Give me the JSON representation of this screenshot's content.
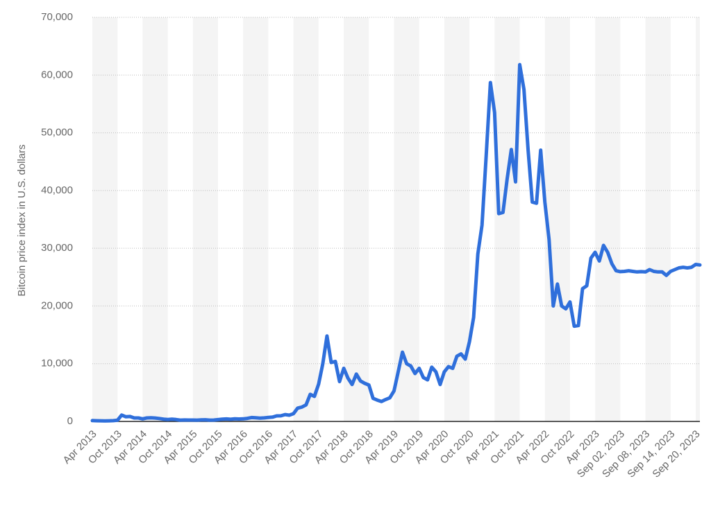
{
  "chart_data": {
    "type": "line",
    "ylabel": "Bitcoin price index in U.S. dollars",
    "color": "#2f6fdb",
    "grid": true,
    "ylim": [
      0,
      70000
    ],
    "yticks": [
      0,
      {
        "value": 10000,
        "label": "10,000"
      },
      {
        "value": 20000,
        "label": "20,000"
      },
      {
        "value": 30000,
        "label": "30,000"
      },
      {
        "value": 40000,
        "label": "40,000"
      },
      {
        "value": 50000,
        "label": "50,000"
      },
      {
        "value": 60000,
        "label": "60,000"
      },
      {
        "value": 70000,
        "label": "70,000"
      }
    ],
    "categories": [
      "Apr 2013",
      null,
      null,
      null,
      null,
      null,
      "Oct 2013",
      null,
      null,
      null,
      null,
      null,
      "Apr 2014",
      null,
      null,
      null,
      null,
      null,
      "Oct 2014",
      null,
      null,
      null,
      null,
      null,
      "Apr 2015",
      null,
      null,
      null,
      null,
      null,
      "Oct 2015",
      null,
      null,
      null,
      null,
      null,
      "Apr 2016",
      null,
      null,
      null,
      null,
      null,
      "Oct 2016",
      null,
      null,
      null,
      null,
      null,
      "Apr 2017",
      null,
      null,
      null,
      null,
      null,
      "Oct 2017",
      null,
      null,
      null,
      null,
      null,
      "Apr 2018",
      null,
      null,
      null,
      null,
      null,
      "Oct 2018",
      null,
      null,
      null,
      null,
      null,
      "Apr 2019",
      null,
      null,
      null,
      null,
      null,
      "Oct 2019",
      null,
      null,
      null,
      null,
      null,
      "Apr 2020",
      null,
      null,
      null,
      null,
      null,
      "Oct 2020",
      null,
      null,
      null,
      null,
      null,
      "Apr 2021",
      null,
      null,
      null,
      null,
      null,
      "Oct 2021",
      null,
      null,
      null,
      null,
      null,
      "Apr 2022",
      null,
      null,
      null,
      null,
      null,
      "Oct 2022",
      null,
      null,
      null,
      null,
      null,
      "Apr 2023",
      null,
      null,
      null,
      null,
      null,
      "Sep 02, 2023",
      null,
      null,
      null,
      null,
      null,
      "Sep 08, 2023",
      null,
      null,
      null,
      null,
      null,
      "Sep 14, 2023",
      null,
      null,
      null,
      null,
      null,
      "Sep 20, 2023",
      null
    ],
    "values": [
      140,
      120,
      110,
      95,
      110,
      130,
      200,
      1100,
      800,
      850,
      600,
      600,
      450,
      600,
      640,
      590,
      500,
      400,
      330,
      380,
      320,
      230,
      250,
      245,
      235,
      230,
      265,
      285,
      230,
      235,
      310,
      380,
      430,
      370,
      440,
      415,
      450,
      530,
      670,
      620,
      575,
      610,
      700,
      740,
      960,
      970,
      1190,
      1080,
      1350,
      2300,
      2480,
      2870,
      4700,
      4340,
      6470,
      10000,
      14800,
      10200,
      10400,
      6900,
      9200,
      7500,
      6400,
      8200,
      7000,
      6600,
      6300,
      4000,
      3700,
      3450,
      3800,
      4100,
      5300,
      8600,
      12000,
      10000,
      9600,
      8300,
      9200,
      7600,
      7200,
      9400,
      8600,
      6400,
      8600,
      9500,
      9200,
      11300,
      11700,
      10800,
      13800,
      18000,
      29000,
      34000,
      46000,
      58700,
      53500,
      36000,
      36200,
      42000,
      47100,
      41500,
      61800,
      57500,
      47000,
      38000,
      37800,
      47000,
      38000,
      31500,
      20000,
      23800,
      20000,
      19500,
      20700,
      16500,
      16600,
      23000,
      23500,
      28300,
      29300,
      27800,
      30500,
      29300,
      27300,
      26100,
      25950,
      26000,
      26100,
      26000,
      25900,
      25950,
      25900,
      26300,
      26000,
      25900,
      25900,
      25300,
      26000,
      26300,
      26600,
      26700,
      26600,
      26700,
      27200,
      27100
    ]
  }
}
